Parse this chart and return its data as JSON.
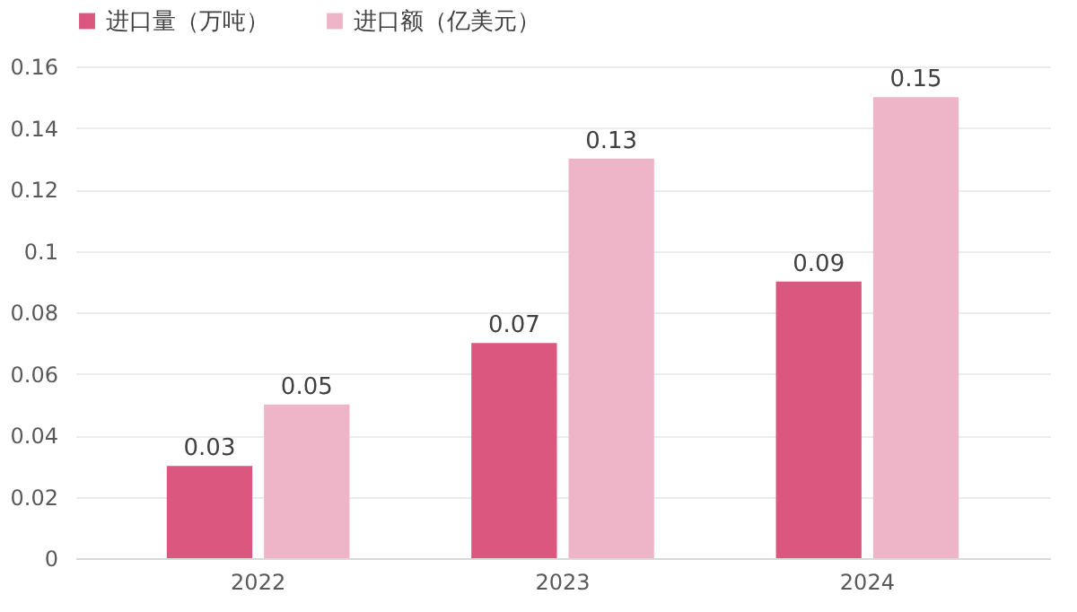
{
  "chart_data": {
    "type": "bar",
    "categories": [
      "2022",
      "2023",
      "2024"
    ],
    "series": [
      {
        "name": "进口量（万吨）",
        "color": "#dc577f",
        "values": [
          0.03,
          0.07,
          0.09
        ]
      },
      {
        "name": "进口额（亿美元）",
        "color": "#eeb5c9",
        "values": [
          0.05,
          0.13,
          0.15
        ]
      }
    ],
    "ylim": [
      0,
      0.16
    ],
    "yticks": [
      0,
      0.02,
      0.04,
      0.06,
      0.08,
      0.1,
      0.12,
      0.14,
      0.16
    ],
    "grid": "y",
    "legend": "top",
    "data_labels": true
  }
}
